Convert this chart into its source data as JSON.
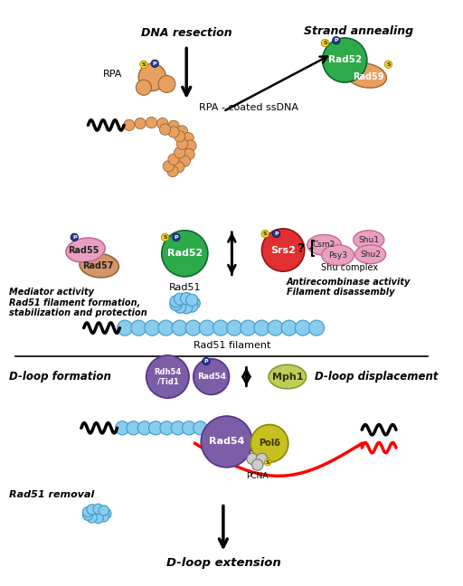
{
  "bg_color": "#ffffff",
  "colors": {
    "orange": "#E8A060",
    "green": "#2EAA4A",
    "red": "#E03030",
    "blue_light": "#88CCEE",
    "purple": "#7B5EA7",
    "yellow_green": "#BFCE5A",
    "yellow": "#F5D020",
    "navy": "#2A3A8A",
    "pink": "#E8A0C0",
    "tan": "#D4956A",
    "gray": "#CCCCCC"
  },
  "labels": {
    "dna_resection": "DNA resection",
    "strand_annealing": "Strand annealing",
    "rpa": "RPA",
    "rpa_coated": "RPA - coated ssDNA",
    "rad52": "Rad52",
    "rad59": "Rad59",
    "rad55": "Rad55",
    "rad57": "Rad57",
    "srs2": "Srs2",
    "rad51": "Rad51",
    "rad51_filament": "Rad51 filament",
    "mediator": "Mediator activity\nRad51 filament formation,\nstabilization and protection",
    "antirecombinase": "Antirecombinase activity\nFilament disassembly",
    "shu_complex": "Shu complex",
    "csm2": "Csm2",
    "psy3": "Psy3",
    "shu1": "Shu1",
    "shu2": "Shu2",
    "dloop_formation": "D-loop formation",
    "dloop_displacement": "D-loop displacement",
    "rdh54": "Rdh54\n/Tid1",
    "rad54": "Rad54",
    "mph1": "Mph1",
    "pol_delta": "Polδ",
    "pcna": "PCNA",
    "rad51_removal": "Rad51 removal",
    "dloop_extension": "D-loop extension"
  }
}
